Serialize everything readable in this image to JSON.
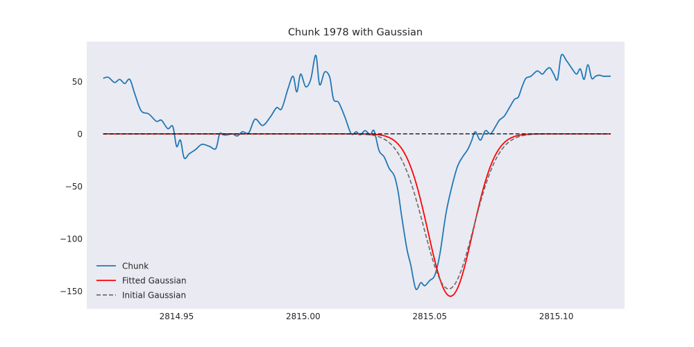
{
  "chart_data": {
    "type": "line",
    "title": "Chunk 1978 with Gaussian",
    "xlabel": "",
    "ylabel": "",
    "xlim": [
      2814.9145,
      2815.127
    ],
    "ylim": [
      -167,
      88
    ],
    "x_ticks": [
      2814.95,
      2815.0,
      2815.05,
      2815.1
    ],
    "x_tick_labels": [
      "2814.95",
      "2815.00",
      "2815.05",
      "2815.10"
    ],
    "y_ticks": [
      50,
      0,
      -50,
      -100,
      -150
    ],
    "y_tick_labels": [
      "50",
      "0",
      "−50",
      "−100",
      "−150"
    ],
    "grid": false,
    "background": "#eaeaf2",
    "legend_position": "lower-left",
    "series": [
      {
        "name": "Chunk",
        "color": "#1f77b4",
        "style": "solid",
        "x": [
          2814.921,
          2814.923,
          2814.9255,
          2814.9275,
          2814.9295,
          2814.9315,
          2814.9335,
          2814.936,
          2814.939,
          2814.942,
          2814.944,
          2814.9465,
          2814.9485,
          2814.95,
          2814.9515,
          2814.953,
          2814.955,
          2814.9575,
          2814.96,
          2814.963,
          2814.9655,
          2814.967,
          2814.9685,
          2814.97,
          2814.972,
          2814.974,
          2814.976,
          2814.9785,
          2814.981,
          2814.984,
          2814.987,
          2814.9895,
          2814.9915,
          2814.994,
          2814.996,
          2814.9975,
          2814.999,
          2815.001,
          2815.003,
          2815.005,
          2815.0065,
          2815.0085,
          2815.0105,
          2815.012,
          2815.014,
          2815.0165,
          2815.019,
          2815.021,
          2815.0225,
          2815.0245,
          2815.0265,
          2815.028,
          2815.03,
          2815.032,
          2815.034,
          2815.036,
          2815.0375,
          2815.039,
          2815.041,
          2815.0425,
          2815.0445,
          2815.0465,
          2815.048,
          2815.05,
          2815.052,
          2815.054,
          2815.0565,
          2815.059,
          2815.061,
          2815.063,
          2815.065,
          2815.0665,
          2815.068,
          2815.07,
          2815.072,
          2815.074,
          2815.076,
          2815.0775,
          2815.0795,
          2815.0815,
          2815.0835,
          2815.085,
          2815.0865,
          2815.088,
          2815.09,
          2815.0925,
          2815.0945,
          2815.096,
          2815.0975,
          2815.099,
          2815.1005,
          2815.102,
          2815.104,
          2815.106,
          2815.108,
          2815.1095,
          2815.111,
          2815.1125,
          2815.114,
          2815.1155,
          2815.117,
          2815.1185,
          2815.12,
          2815.1215
        ],
        "y": [
          53,
          54,
          49,
          52,
          48,
          52,
          38,
          22,
          19,
          12,
          13,
          5,
          7,
          -12,
          -6,
          -23,
          -19,
          -15,
          -10,
          -12,
          -14,
          0,
          -1,
          -1,
          0,
          -2,
          2,
          1,
          14,
          8,
          16,
          25,
          24,
          43,
          55,
          40,
          57,
          45,
          52,
          75,
          47,
          59,
          54,
          33,
          30,
          16,
          0,
          2,
          -1,
          3,
          -1,
          3,
          -16,
          -22,
          -33,
          -40,
          -55,
          -80,
          -110,
          -125,
          -148,
          -142,
          -145,
          -140,
          -135,
          -115,
          -75,
          -48,
          -31,
          -22,
          -15,
          -7,
          2,
          -6,
          3,
          0,
          7,
          13,
          17,
          25,
          33,
          35,
          45,
          53,
          55,
          60,
          57,
          61,
          63,
          57,
          52,
          75,
          70,
          63,
          57,
          62,
          52,
          66,
          53,
          55,
          56,
          55,
          55,
          55
        ]
      },
      {
        "name": "Fitted Gaussian",
        "color": "#ff0000",
        "style": "solid",
        "gaussian": {
          "amplitude": -155,
          "center": 2815.0582,
          "sigma": 0.0088,
          "offset": 0
        }
      },
      {
        "name": "Initial Gaussian",
        "color": "#6e6e6e",
        "style": "dashed",
        "gaussian": {
          "amplitude": -148,
          "center": 2815.0575,
          "sigma": 0.0098,
          "offset": 0
        }
      }
    ],
    "reference_lines": [
      {
        "y": 0,
        "color": "#000000",
        "style": "dashed",
        "x_range": [
          2814.921,
          2815.1215
        ]
      }
    ]
  }
}
